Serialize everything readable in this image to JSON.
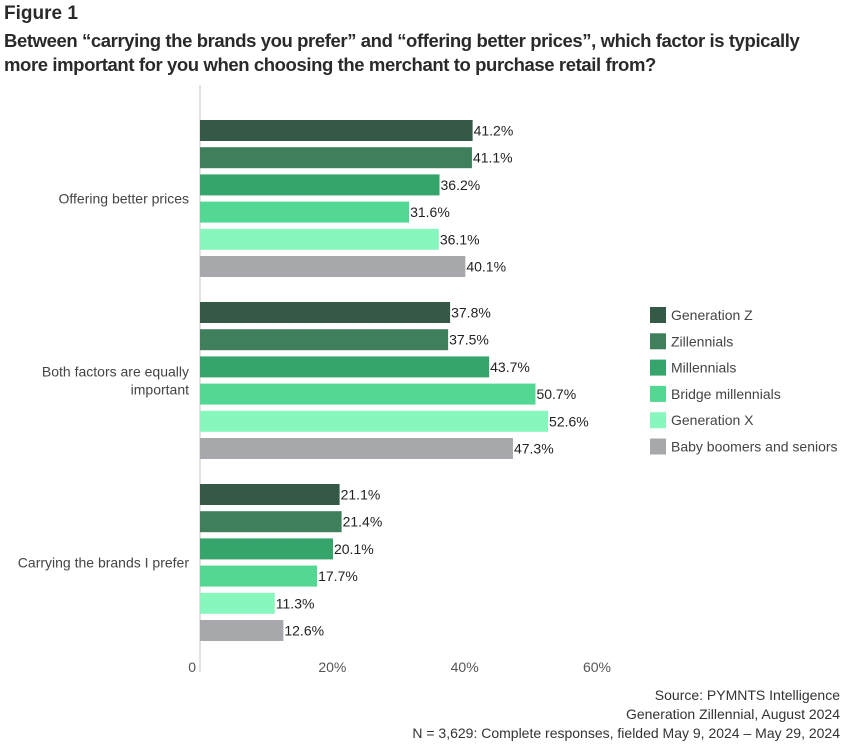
{
  "figure_label": "Figure 1",
  "chart_data": {
    "type": "bar",
    "orientation": "horizontal",
    "title": "Between “carrying the brands you prefer” and “offering better prices”, which factor is typically more important for you when choosing the merchant to purchase retail from?",
    "categories": [
      "Offering better prices",
      "Both factors are equally important",
      "Carrying the brands I prefer"
    ],
    "category_lines": [
      [
        "Offering better prices"
      ],
      [
        "Both factors are equally",
        "important"
      ],
      [
        "Carrying the brands I prefer"
      ]
    ],
    "series": [
      {
        "name": "Generation Z",
        "color": "#355947",
        "values": [
          41.2,
          37.8,
          21.1
        ]
      },
      {
        "name": "Zillennials",
        "color": "#3f7f5c",
        "values": [
          41.1,
          37.5,
          21.4
        ]
      },
      {
        "name": "Millennials",
        "color": "#36a56b",
        "values": [
          36.2,
          43.7,
          20.1
        ]
      },
      {
        "name": "Bridge millennials",
        "color": "#52d892",
        "values": [
          31.6,
          50.7,
          17.7
        ]
      },
      {
        "name": "Generation X",
        "color": "#88f7be",
        "values": [
          36.1,
          52.6,
          11.3
        ]
      },
      {
        "name": "Baby boomers and seniors",
        "color": "#a7a8ab",
        "values": [
          40.1,
          47.3,
          12.6
        ]
      }
    ],
    "value_suffix": "%",
    "xlim": [
      0,
      60
    ],
    "xticks": [
      0,
      20,
      40,
      60
    ],
    "xtick_labels": [
      "0",
      "20%",
      "40%",
      "60%"
    ],
    "xlabel": "",
    "ylabel": "",
    "grid": false,
    "legend_position": "right"
  },
  "source": {
    "line1": "Source: PYMNTS Intelligence",
    "line2": "Generation Zillennial, August 2024",
    "line3": "N = 3,629: Complete responses, fielded May 9, 2024 – May 29, 2024"
  }
}
